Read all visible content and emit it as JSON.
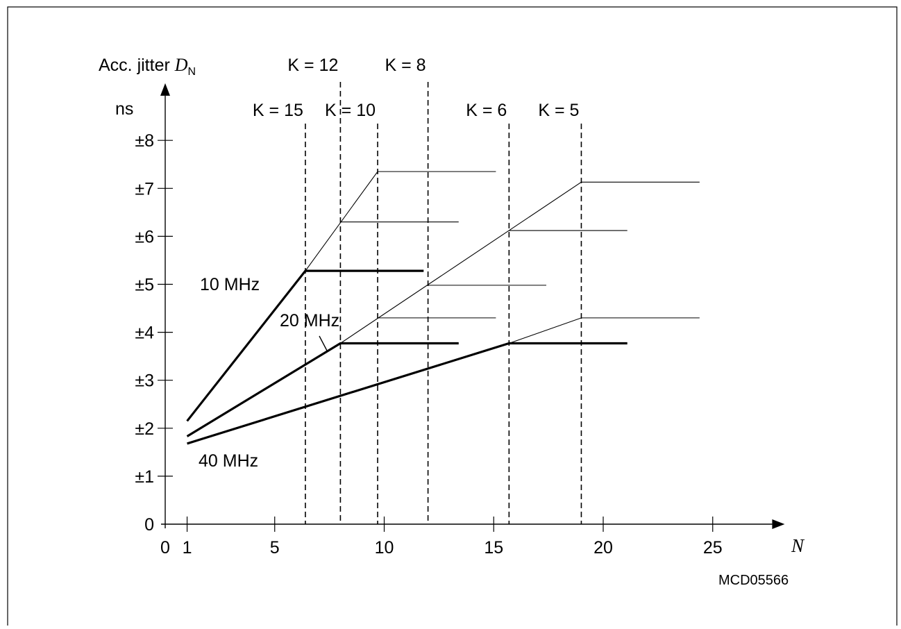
{
  "chart_data": {
    "type": "line",
    "ylabel": "Acc. jitter",
    "ylabel_symbol": "D",
    "ylabel_subscript": "N",
    "yunit": "ns",
    "xlabel": "N",
    "figure_code": "MCD05566",
    "xlim": [
      0,
      28
    ],
    "ylim": [
      0,
      8.8
    ],
    "x_ticks": [
      0,
      1,
      5,
      10,
      15,
      20,
      25
    ],
    "x_tick_labels": [
      "0",
      "1",
      "5",
      "10",
      "15",
      "20",
      "25"
    ],
    "y_ticks": [
      0,
      1,
      2,
      3,
      4,
      5,
      6,
      7,
      8
    ],
    "y_tick_labels": [
      "0",
      "±1",
      "±2",
      "±3",
      "±4",
      "±5",
      "±6",
      "±7",
      "±8"
    ],
    "k_markers": [
      {
        "label": "K = 15",
        "x": 6.4
      },
      {
        "label": "K = 12",
        "x": 8.0
      },
      {
        "label": "K = 10",
        "x": 9.7
      },
      {
        "label": "K = 8",
        "x": 12.0
      },
      {
        "label": "K = 6",
        "x": 15.7
      },
      {
        "label": "K = 5",
        "x": 19.0
      }
    ],
    "series": [
      {
        "name": "10 MHz",
        "bold": true,
        "x": [
          1,
          6.4,
          11.8
        ],
        "y": [
          2.15,
          5.28,
          5.28
        ]
      },
      {
        "name": "20 MHz",
        "bold": true,
        "x": [
          1,
          8.0,
          13.4
        ],
        "y": [
          1.83,
          3.77,
          3.77
        ]
      },
      {
        "name": "40 MHz",
        "bold": true,
        "x": [
          1,
          15.7,
          21.1
        ],
        "y": [
          1.68,
          3.77,
          3.77
        ]
      }
    ],
    "thin_lines": [
      {
        "x": [
          6.4,
          9.7,
          15.1
        ],
        "y": [
          5.28,
          7.35,
          7.35
        ]
      },
      {
        "x": [
          8.0,
          13.4
        ],
        "y": [
          6.3,
          6.3
        ]
      },
      {
        "x": [
          8.0,
          19.0,
          24.4
        ],
        "y": [
          3.77,
          7.13,
          7.13
        ]
      },
      {
        "x": [
          15.7,
          21.1
        ],
        "y": [
          6.12,
          6.12
        ]
      },
      {
        "x": [
          12.0,
          17.4
        ],
        "y": [
          4.98,
          4.98
        ]
      },
      {
        "x": [
          9.7,
          15.1
        ],
        "y": [
          4.3,
          4.3
        ]
      },
      {
        "x": [
          15.7,
          19.0,
          24.4
        ],
        "y": [
          3.77,
          4.3,
          4.3
        ]
      }
    ]
  }
}
